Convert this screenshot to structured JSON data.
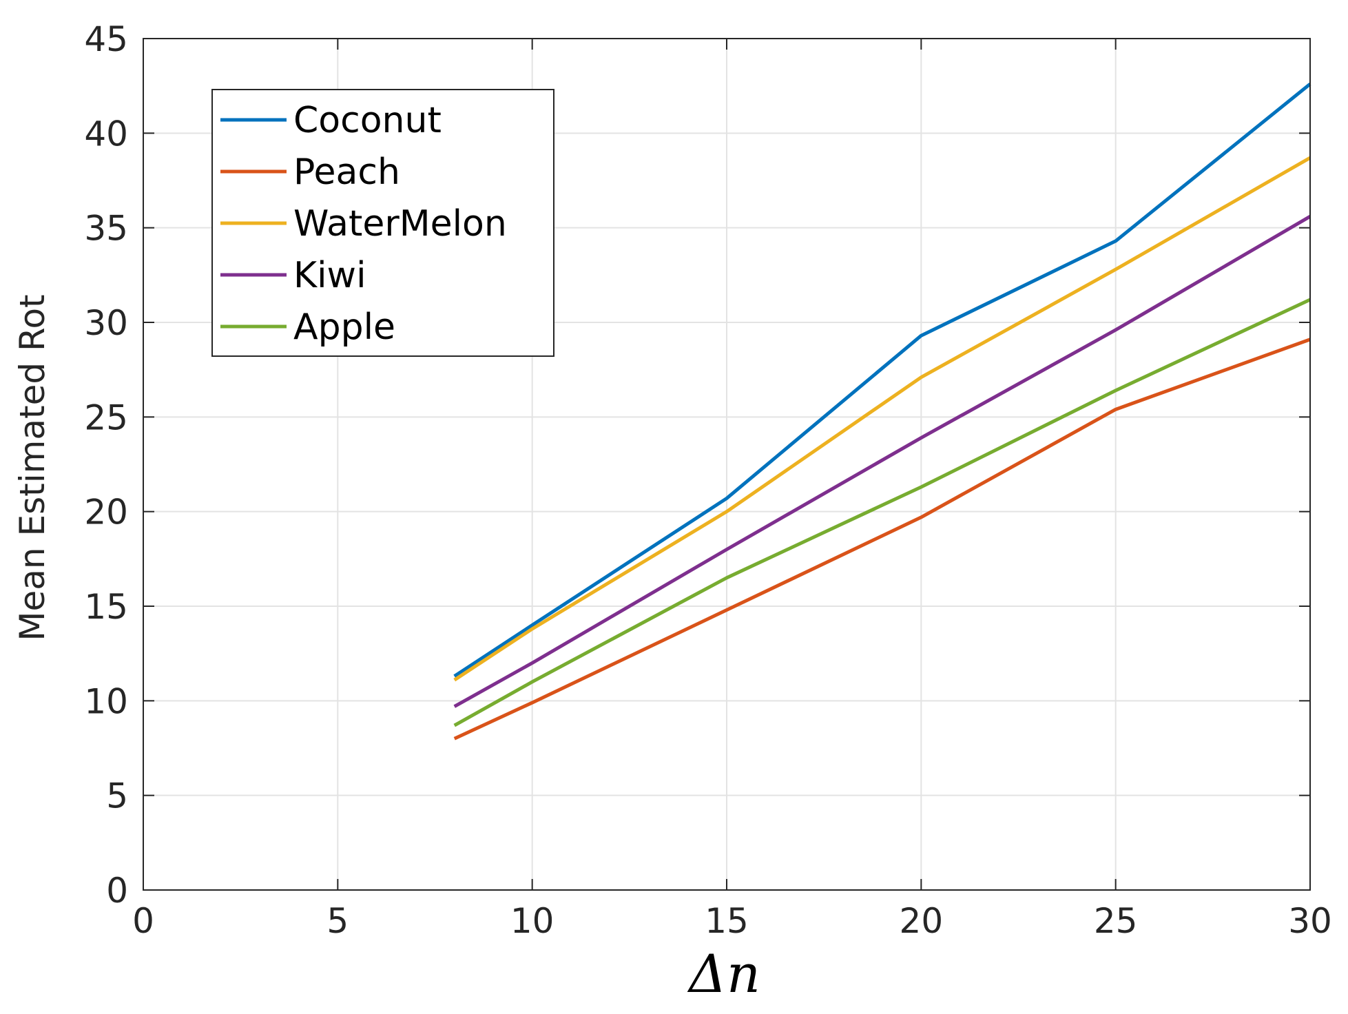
{
  "chart_data": {
    "type": "line",
    "title": "",
    "xlabel": "Δn",
    "ylabel": "Mean Estimated Rot",
    "xlim": [
      0,
      30
    ],
    "ylim": [
      0,
      45
    ],
    "xticks": [
      0,
      5,
      10,
      15,
      20,
      25,
      30
    ],
    "yticks": [
      0,
      5,
      10,
      15,
      20,
      25,
      30,
      35,
      40,
      45
    ],
    "grid": true,
    "legend_position": "top-left",
    "x": [
      8,
      10,
      15,
      20,
      25,
      30
    ],
    "series": [
      {
        "name": "Coconut",
        "color": "#0072BD",
        "values": [
          11.3,
          14.0,
          20.7,
          29.3,
          34.3,
          42.6
        ]
      },
      {
        "name": "Peach",
        "color": "#D95319",
        "values": [
          8.0,
          9.9,
          14.8,
          19.7,
          25.4,
          29.1
        ]
      },
      {
        "name": "WaterMelon",
        "color": "#EDB120",
        "values": [
          11.1,
          13.8,
          20.0,
          27.1,
          32.8,
          38.7
        ]
      },
      {
        "name": "Kiwi",
        "color": "#7E2F8E",
        "values": [
          9.7,
          12.0,
          18.0,
          23.9,
          29.6,
          35.6
        ]
      },
      {
        "name": "Apple",
        "color": "#77AC30",
        "values": [
          8.7,
          11.0,
          16.5,
          21.3,
          26.4,
          31.2
        ]
      }
    ]
  }
}
